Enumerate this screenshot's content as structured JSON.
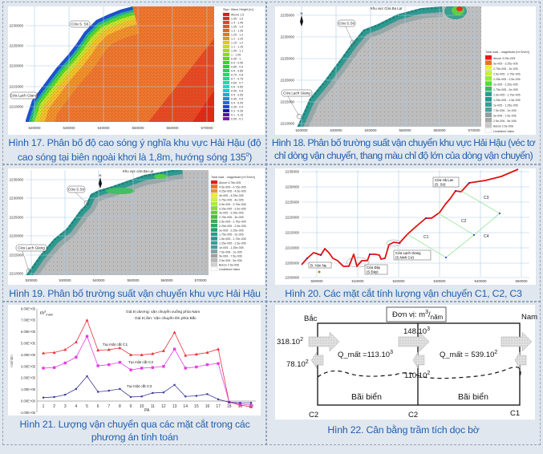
{
  "figures": {
    "fig17": {
      "caption_line1": "Hình 17. Phân bố độ cao sóng ý nghĩa khu vực Hải Hậu (độ",
      "caption_line2": "cao sóng tại biên ngoài khơi là 1,8m, hướng sóng 135",
      "caption_sup": "0",
      "caption_end": ")",
      "legend_title": "Sign. Wave Height [m]",
      "legend": [
        "Above 1.5",
        "1.45 - 1.5",
        "1.4 - 1.45",
        "1.35 - 1.4",
        "1.3 - 1.35",
        "1.25 - 1.3",
        "1.2 - 1.25",
        "1.15 - 1.2",
        "1.1 - 1.15",
        "1.05 - 1.1",
        "1 - 1.05",
        "0.95 - 1",
        "0.9 - 0.95",
        "0.85 - 0.9",
        "0.8 - 0.85",
        "0.75 - 0.8",
        "0.7 - 0.75",
        "0.65 - 0.7",
        "0.6 - 0.65",
        "0.55 - 0.6",
        "0.5 - 0.55",
        "0.45 - 0.5",
        "0.4 - 0.45",
        "0.35 - 0.4",
        "0.3 - 0.35",
        "0.1 - 0.15",
        "0.05 - 0.1"
      ],
      "y_ticks": [
        "2230000",
        "2225000",
        "2220000",
        "2215000",
        "2210000"
      ],
      "x_ticks": [
        "520000",
        "530000",
        "540000",
        "550000",
        "560000",
        "570000"
      ],
      "labels": {
        "so": "Cửa S. Sò",
        "lach_giang": "Cửa Lạch Giang"
      }
    },
    "fig18": {
      "caption_line1": "Hình 18. Phân bố trường suất vận chuyển khu vực Hải Hậu (véc tơ",
      "caption_line2": "chỉ dòng vận chuyển, thang màu chỉ độ lớn của dòng vận chuyển)",
      "legend_title": "Total load - magnitude [m^3/s/m]",
      "legend": [
        "Above 3.25e-005",
        "3e-005 - 3.25e-005",
        "2.75e-005 - 3e-005",
        "2.5e-005 - 2.75e-005",
        "2.25e-005 - 2.5e-005",
        "2e-005 - 2.25e-005",
        "1.75e-005 - 2e-005",
        "1.5e-005 - 1.75e-005",
        "1.25e-005 - 1.5e-005",
        "1e-005 - 1.25e-005",
        "7.5e-006 - 1e-005",
        "5e-006 - 7.5e-006",
        "2.5e-006 - 5e-006",
        "Below 2.5e-006",
        "Undefined Value"
      ],
      "y_ticks": [
        "2235000",
        "2230000",
        "2225000",
        "2220000",
        "2215000",
        "2210000"
      ],
      "x_ticks": [
        "520000",
        "530000",
        "540000",
        "550000",
        "560000",
        "570000"
      ],
      "labels": {
        "north": "N",
        "ba_lat": "Khu vực Cửa Ba Lạt",
        "so": "Cửa S.Sò",
        "lach_giang": "Cửa Lạch Giang"
      }
    },
    "fig19": {
      "caption": "Hình 19. Phân bố trường suất vận chuyển khu vực Hải Hậu",
      "legend_title": "Total load - magnitude [m^3/s/m]",
      "legend": [
        "Above 4.75e-005",
        "4.5e-005 - 4.75e-005",
        "4.25e-005 - 4.5e-005",
        "4e-005 - 4.25e-005",
        "3.75e-005 - 4e-005",
        "3.5e-005 - 3.75e-005",
        "3.25e-005 - 3.5e-005",
        "3e-005 - 3.25e-005",
        "2.75e-005 - 3e-005",
        "2.5e-005 - 2.75e-005",
        "2.25e-005 - 2.5e-005",
        "2e-005 - 2.25e-005",
        "1.75e-005 - 2e-005",
        "1.5e-005 - 1.75e-005",
        "1.25e-005 - 1.5e-005",
        "1e-005 - 1.25e-005",
        "7.5e-006 - 1e-005",
        "5e-006 - 7.5e-006",
        "2.5e-006 - 5e-006",
        "Below 2.5e-006",
        "Undefined Value"
      ],
      "y_ticks": [
        "2235000",
        "2230000",
        "2225000",
        "2220000",
        "2215000",
        "2210000"
      ],
      "x_ticks": [
        "520000",
        "530000",
        "540000",
        "550000",
        "560000",
        "570000"
      ],
      "labels": {
        "north": "N",
        "ba_lat": "Khu vực cửa Ba Lạt",
        "so": "Cửa S.Sò",
        "lach_giang": "Cửa Lạch Giang"
      }
    },
    "fig20": {
      "caption": "Hình 20. Các mặt cắt tính lượng vận chuyển C1, C2, C3",
      "y_ticks": [
        "2235000",
        "2230000",
        "2225000",
        "2220000",
        "2215000",
        "2210000",
        "2205000",
        "2200000"
      ],
      "x_ticks": [
        "500000",
        "510000",
        "520000",
        "530000",
        "540000",
        "550000"
      ],
      "labels": {
        "ha_lan_1": "Cửa Hà Lan",
        "ha_lan_2": "(S. Sò)",
        "lach_giang_1": "Cửa Lạch Giang",
        "lach_giang_2": "(S.Ninh Cơ)",
        "day_1": "Cửa Đáy",
        "day_2": "(S.Đáy)",
        "hon_ne": "Đ. Hòn Nẹ",
        "c1": "C1",
        "c2": "C2",
        "c3": "C3",
        "c4": "C4"
      }
    },
    "fig21": {
      "caption_line1": "Hình 21. Lượng vận chuyển qua các mặt cắt trong các",
      "caption_line2": "phương án tính toán",
      "unit_main": "m",
      "unit_sup": "3",
      "unit_den": "/năm",
      "note1": "Giá trị dương: vận chuyển xuống phía Nam",
      "note2": "Giá trị âm: Vận chuyển lên phía Bắc"
    },
    "fig22": {
      "caption": "Hình 22. Cân bằng trầm tích dọc bờ",
      "unit_label": "Đơn vị:",
      "unit_main": "m",
      "unit_sup": "3",
      "unit_den": "năm",
      "north": "Bắc",
      "south": "Nam",
      "in_left": "318.10",
      "in_left_exp": "2",
      "out_left": "78.10",
      "out_left_exp": "2",
      "mid_in": "148.10",
      "mid_in_exp": "3",
      "mid_out": "110.10",
      "mid_out_exp": "2",
      "q_left": "Q_mất =113.10",
      "q_left_exp": "3",
      "q_right": "Q_mất = 539.10",
      "q_right_exp": "2",
      "beach_left": "Bãi biển",
      "beach_right": "Bãi biển",
      "sec_left": "C2",
      "sec_mid": "C2",
      "sec_right": "C1"
    }
  },
  "chart_data": {
    "type": "line",
    "title": "",
    "xlabel": "PA",
    "ylabel": "m3/năm",
    "categories": [
      "1",
      "2",
      "3",
      "4",
      "5",
      "6",
      "7",
      "8",
      "9",
      "10",
      "11",
      "12",
      "13",
      "14",
      "15",
      "16",
      "17",
      "18",
      "19",
      "20"
    ],
    "y_ticks": [
      "8.00E+05",
      "7.00E+05",
      "6.00E+05",
      "5.00E+05",
      "4.00E+05",
      "3.00E+05",
      "2.00E+05",
      "1.00E+05",
      "0.00E+00",
      "-1.00E+05"
    ],
    "ylim": [
      -100000,
      800000
    ],
    "series": [
      {
        "name": "Tại mặt cắt C1",
        "color": "#e8323a",
        "marker": "triangle",
        "values": [
          415000,
          420000,
          445000,
          510000,
          700000,
          440000,
          445000,
          460000,
          400000,
          400000,
          410000,
          435000,
          595000,
          395000,
          405000,
          420000,
          450000,
          -10000,
          -35000,
          -50000
        ]
      },
      {
        "name": "Tại mặt cắt C2",
        "color": "#e040e0",
        "marker": "square",
        "values": [
          285000,
          290000,
          330000,
          380000,
          560000,
          305000,
          315000,
          335000,
          270000,
          285000,
          290000,
          300000,
          450000,
          285000,
          295000,
          315000,
          325000,
          -10000,
          -25000,
          -35000
        ]
      },
      {
        "name": "Tại mặt cắt C3",
        "color": "#3a3a9a",
        "marker": "diamond",
        "values": [
          30000,
          35000,
          55000,
          105000,
          215000,
          80000,
          90000,
          105000,
          35000,
          40000,
          70000,
          75000,
          140000,
          40000,
          45000,
          60000,
          15000,
          -10000,
          -15000,
          -15000
        ]
      }
    ],
    "grid": false,
    "legend": "inline-labels"
  }
}
